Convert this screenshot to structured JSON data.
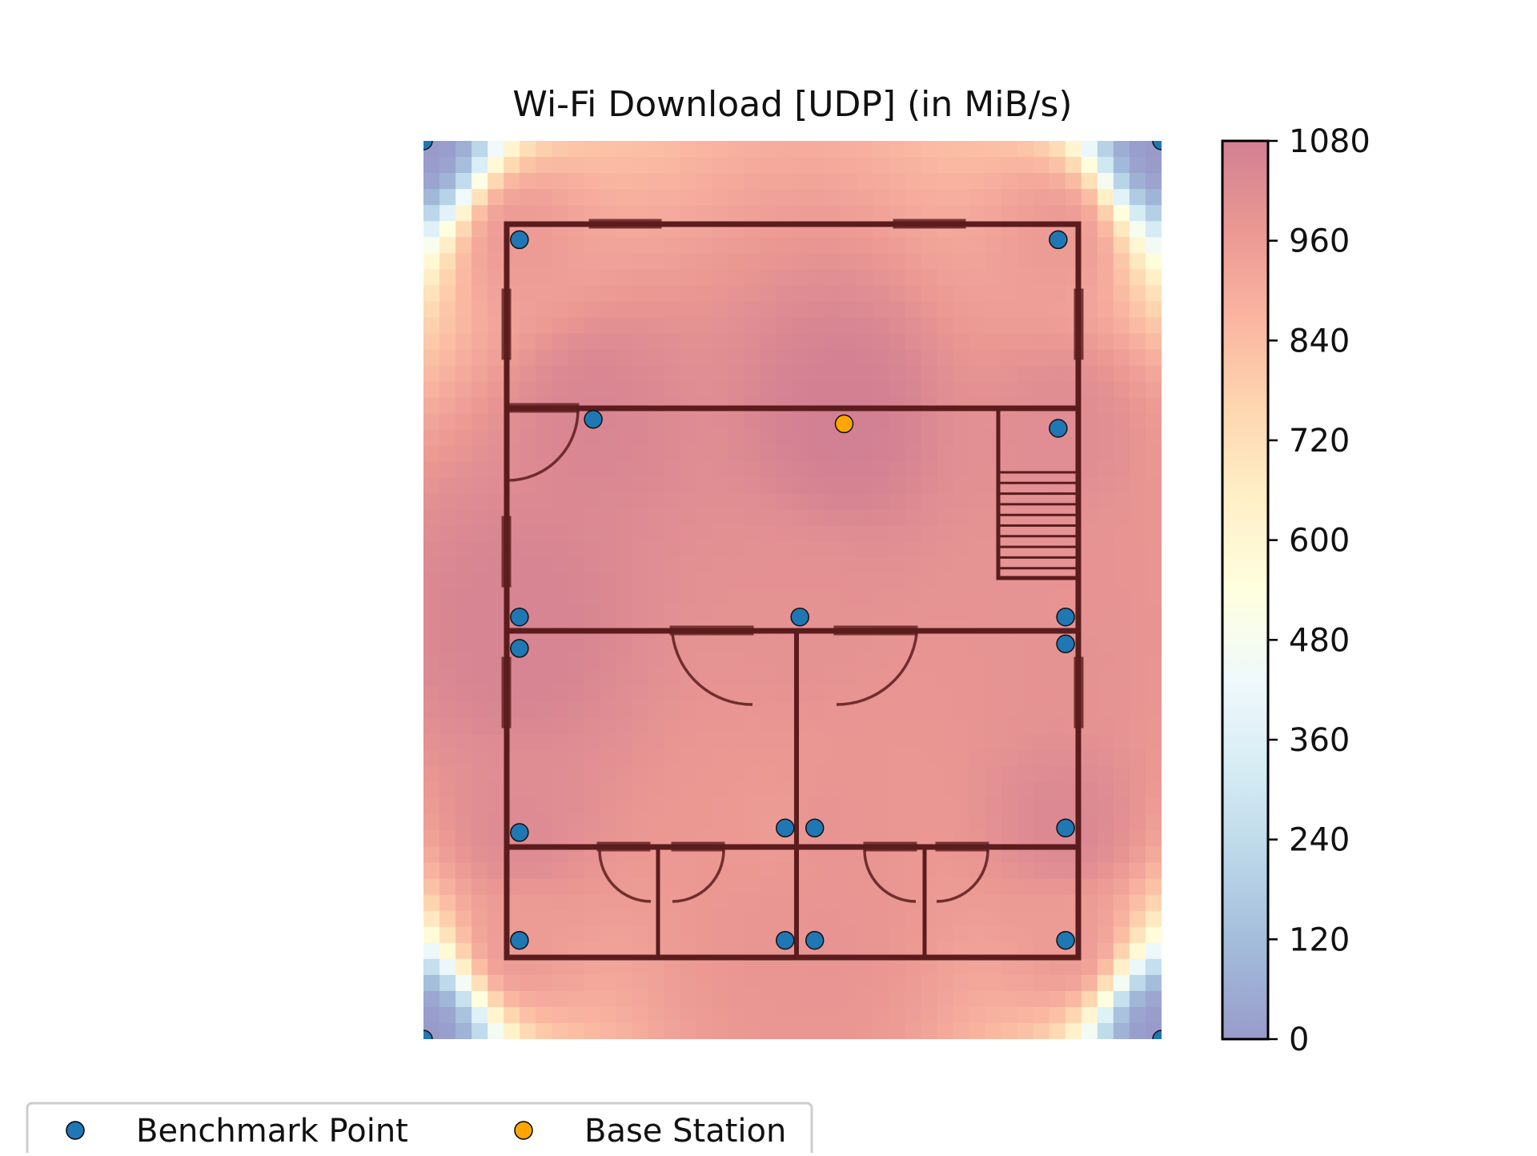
{
  "chart_data": {
    "type": "heatmap",
    "title": "Wi-Fi Download [UDP] (in MiB/s)",
    "xlabel": "",
    "ylabel": "",
    "colormap": "RdYlBu_r",
    "colormap_alpha": 0.5,
    "colorbar": {
      "range": [
        0,
        1080
      ],
      "ticks": [
        0,
        120,
        240,
        360,
        480,
        600,
        720,
        840,
        960,
        1080
      ],
      "tick_labels": [
        "0",
        "120",
        "240",
        "360",
        "480",
        "600",
        "720",
        "840",
        "960",
        "1080"
      ]
    },
    "colors": [
      "#313695",
      "#4575b4",
      "#74add1",
      "#abd9e9",
      "#e0f3f8",
      "#ffffbf",
      "#fee090",
      "#fdae61",
      "#f46d43",
      "#d73027",
      "#a50026"
    ],
    "series": [
      {
        "name": "Benchmark Point",
        "color": "#1f77b4",
        "points": [
          {
            "x": 0,
            "y": 0,
            "value": 0
          },
          {
            "x": 100,
            "y": 0,
            "value": 0
          },
          {
            "x": 0,
            "y": 100,
            "value": 0
          },
          {
            "x": 100,
            "y": 100,
            "value": 0
          },
          {
            "x": 13,
            "y": 11,
            "value": 960
          },
          {
            "x": 86,
            "y": 11,
            "value": 960
          },
          {
            "x": 23,
            "y": 31,
            "value": 1050
          },
          {
            "x": 86,
            "y": 32,
            "value": 1020
          },
          {
            "x": 13,
            "y": 53,
            "value": 1060
          },
          {
            "x": 51,
            "y": 53,
            "value": 1000
          },
          {
            "x": 87,
            "y": 53,
            "value": 990
          },
          {
            "x": 13,
            "y": 56.5,
            "value": 1060
          },
          {
            "x": 87,
            "y": 56,
            "value": 1000
          },
          {
            "x": 13,
            "y": 77,
            "value": 1030
          },
          {
            "x": 49,
            "y": 76.5,
            "value": 960
          },
          {
            "x": 53,
            "y": 76.5,
            "value": 990
          },
          {
            "x": 87,
            "y": 76.5,
            "value": 1040
          },
          {
            "x": 13,
            "y": 89,
            "value": 960
          },
          {
            "x": 49,
            "y": 89,
            "value": 980
          },
          {
            "x": 53,
            "y": 89,
            "value": 990
          },
          {
            "x": 87,
            "y": 89,
            "value": 960
          }
        ]
      },
      {
        "name": "Base Station",
        "color": "#ffa500",
        "points": [
          {
            "x": 57,
            "y": 31.5,
            "value": 1080
          }
        ]
      }
    ],
    "legend": {
      "placement": "bottom-left",
      "entries": [
        {
          "label": "Benchmark Point",
          "color": "#1f77b4"
        },
        {
          "label": "Base Station",
          "color": "#ffa500"
        }
      ]
    }
  }
}
